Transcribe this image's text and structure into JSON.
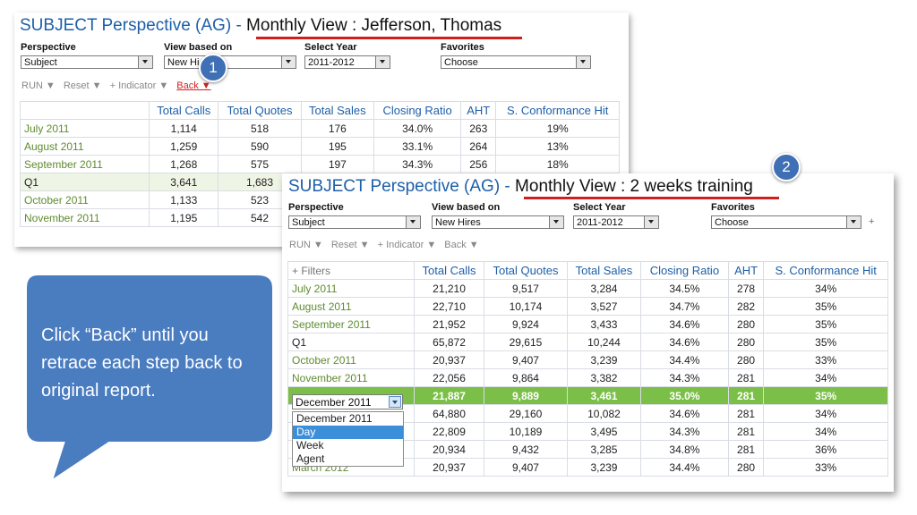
{
  "panel1": {
    "title_prefix": "SUBJECT Perspective (AG)",
    "title_sep": " - ",
    "title_view": "Monthly View : Jefferson, Thomas",
    "filters": {
      "perspective_label": "Perspective",
      "perspective_value": "Subject",
      "view_label": "View based on",
      "view_value": "New Hi",
      "year_label": "Select Year",
      "year_value": "2011-2012",
      "fav_label": "Favorites",
      "fav_value": "Choose"
    },
    "toolbar": {
      "run": "RUN ▼",
      "reset": "Reset ▼",
      "indicator": "+ Indicator ▼",
      "back": "Back ▼"
    },
    "columns": [
      "",
      "Total Calls",
      "Total Quotes",
      "Total Sales",
      "Closing Ratio",
      "AHT",
      "S. Conformance Hit"
    ],
    "rows": [
      {
        "label": "July 2011",
        "vals": [
          "1,114",
          "518",
          "176",
          "34.0%",
          "263",
          "19%"
        ]
      },
      {
        "label": "August 2011",
        "vals": [
          "1,259",
          "590",
          "195",
          "33.1%",
          "264",
          "13%"
        ]
      },
      {
        "label": "September 2011",
        "vals": [
          "1,268",
          "575",
          "197",
          "34.3%",
          "256",
          "18%"
        ]
      },
      {
        "label": "Q1",
        "vals": [
          "3,641",
          "1,683",
          "",
          "",
          "",
          ""
        ]
      },
      {
        "label": "October 2011",
        "vals": [
          "1,133",
          "523",
          "",
          "",
          "",
          ""
        ]
      },
      {
        "label": "November 2011",
        "vals": [
          "1,195",
          "542",
          "",
          "",
          "",
          ""
        ]
      }
    ]
  },
  "panel2": {
    "title_prefix": "SUBJECT Perspective (AG)",
    "title_sep": " - ",
    "title_view": "Monthly View : 2 weeks training",
    "filters": {
      "perspective_label": "Perspective",
      "perspective_value": "Subject",
      "view_label": "View based on",
      "view_value": "New Hires",
      "year_label": "Select Year",
      "year_value": "2011-2012",
      "fav_label": "Favorites",
      "fav_value": "Choose",
      "plus": "+"
    },
    "toolbar": {
      "run": "RUN ▼",
      "reset": "Reset ▼",
      "indicator": "+ Indicator ▼",
      "back": "Back ▼"
    },
    "columns": [
      "+ Filters",
      "Total Calls",
      "Total Quotes",
      "Total Sales",
      "Closing Ratio",
      "AHT",
      "S. Conformance Hit"
    ],
    "rows": [
      {
        "label": "July 2011",
        "vals": [
          "21,210",
          "9,517",
          "3,284",
          "34.5%",
          "278",
          "34%"
        ]
      },
      {
        "label": "August 2011",
        "vals": [
          "22,710",
          "10,174",
          "3,527",
          "34.7%",
          "282",
          "35%"
        ]
      },
      {
        "label": "September 2011",
        "vals": [
          "21,952",
          "9,924",
          "3,433",
          "34.6%",
          "280",
          "35%"
        ]
      },
      {
        "label": "Q1",
        "vals": [
          "65,872",
          "29,615",
          "10,244",
          "34.6%",
          "280",
          "35%"
        ]
      },
      {
        "label": "October 2011",
        "vals": [
          "20,937",
          "9,407",
          "3,239",
          "34.4%",
          "280",
          "33%"
        ]
      },
      {
        "label": "November 2011",
        "vals": [
          "22,056",
          "9,864",
          "3,382",
          "34.3%",
          "281",
          "34%"
        ]
      },
      {
        "label": "December 2011",
        "vals": [
          "21,887",
          "9,889",
          "3,461",
          "35.0%",
          "281",
          "35%"
        ]
      },
      {
        "label": "",
        "vals": [
          "64,880",
          "29,160",
          "10,082",
          "34.6%",
          "281",
          "34%"
        ]
      },
      {
        "label": "",
        "vals": [
          "22,809",
          "10,189",
          "3,495",
          "34.3%",
          "281",
          "34%"
        ]
      },
      {
        "label": "",
        "vals": [
          "20,934",
          "9,432",
          "3,285",
          "34.8%",
          "281",
          "36%"
        ]
      },
      {
        "label": "March 2012",
        "vals": [
          "20,937",
          "9,407",
          "3,239",
          "34.4%",
          "280",
          "33%"
        ]
      }
    ],
    "dropdown": {
      "selected": "December 2011",
      "options": [
        "December 2011",
        "Day",
        "Week",
        "Agent"
      ]
    }
  },
  "badges": {
    "one": "1",
    "two": "2"
  },
  "callout": "Click “Back”  until you retrace each step back to original report.",
  "colors": {
    "title_blue": "#1d5fa8",
    "label_green": "#5f8b2e",
    "highlight_green": "#7bbf48",
    "underline_red": "#d11e1e",
    "callout_blue": "#4a7cc0"
  }
}
